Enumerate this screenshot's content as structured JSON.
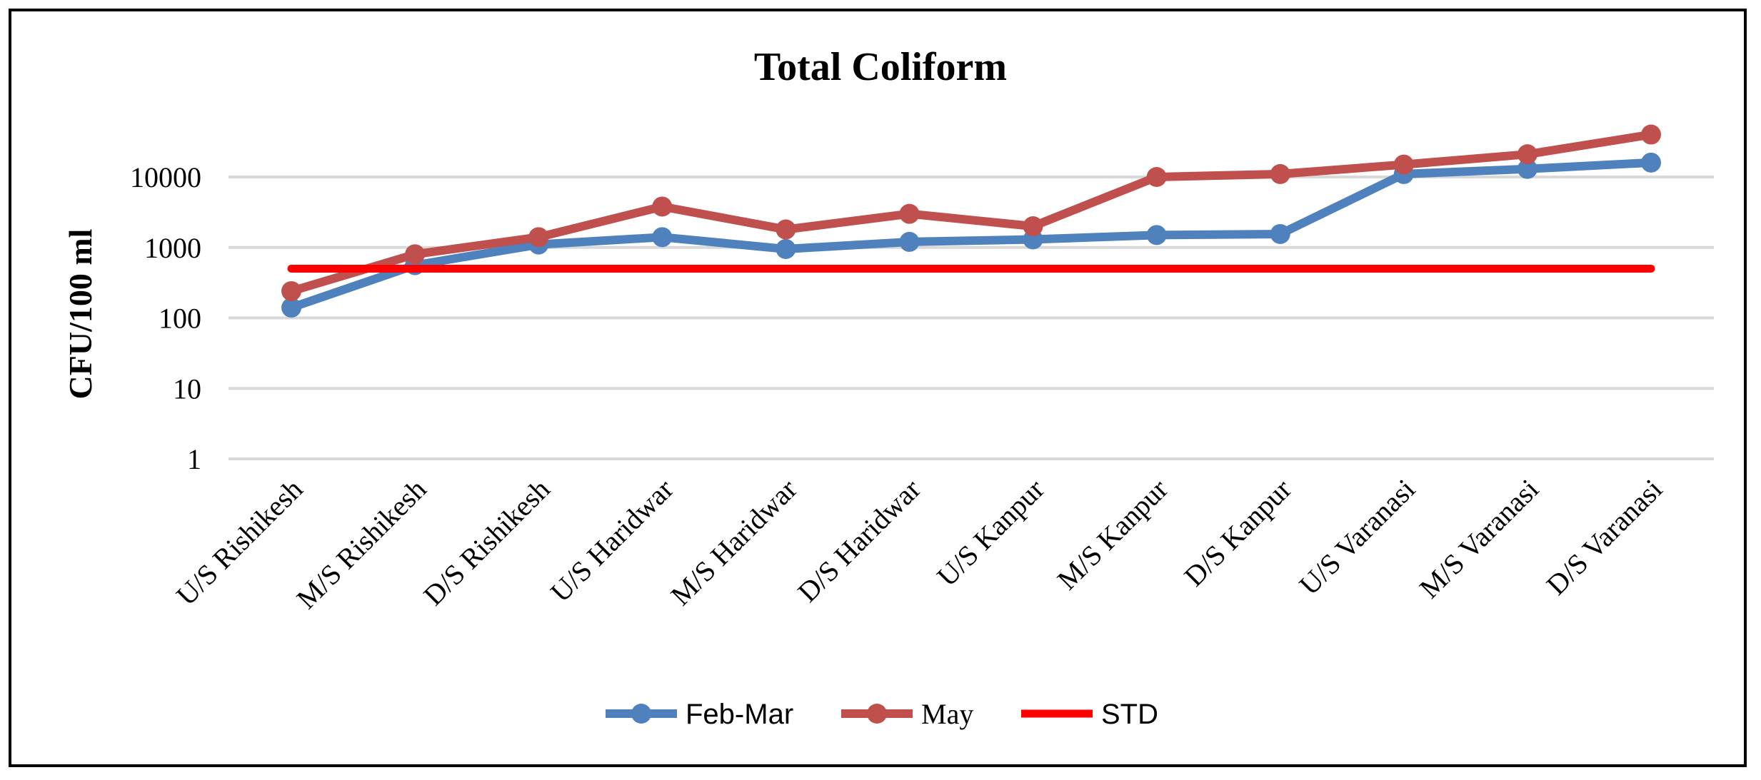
{
  "chart_data": {
    "type": "line",
    "title": "Total Coliform",
    "xlabel": "",
    "ylabel": "CFU/100 ml",
    "yscale": "log",
    "ylim": [
      1,
      50000
    ],
    "yticks": [
      1,
      10,
      100,
      1000,
      10000
    ],
    "ytick_labels": [
      "1",
      "10",
      "100",
      "1000",
      "10000"
    ],
    "grid": true,
    "legend": "bottom",
    "categories": [
      "U/S Rishikesh",
      "M/S Rishikesh",
      "D/S Rishikesh",
      "U/S Haridwar",
      "M/S Haridwar",
      "D/S Haridwar",
      "U/S Kanpur",
      "M/S Kanpur",
      "D/S Kanpur",
      "U/S Varanasi",
      "M/S Varanasi",
      "D/S Varanasi"
    ],
    "series": [
      {
        "name": "Feb-Mar",
        "color": "#4F81BD",
        "marker": true,
        "values": [
          140,
          560,
          1100,
          1400,
          950,
          1200,
          1300,
          1500,
          1550,
          11000,
          13000,
          16000
        ]
      },
      {
        "name": "May",
        "color": "#C0504D",
        "marker": true,
        "values": [
          240,
          800,
          1400,
          3800,
          1800,
          3000,
          2000,
          10000,
          11000,
          15000,
          21000,
          40000
        ]
      },
      {
        "name": "STD",
        "color": "#FF0000",
        "marker": false,
        "values": [
          500,
          500,
          500,
          500,
          500,
          500,
          500,
          500,
          500,
          500,
          500,
          500
        ]
      }
    ]
  }
}
